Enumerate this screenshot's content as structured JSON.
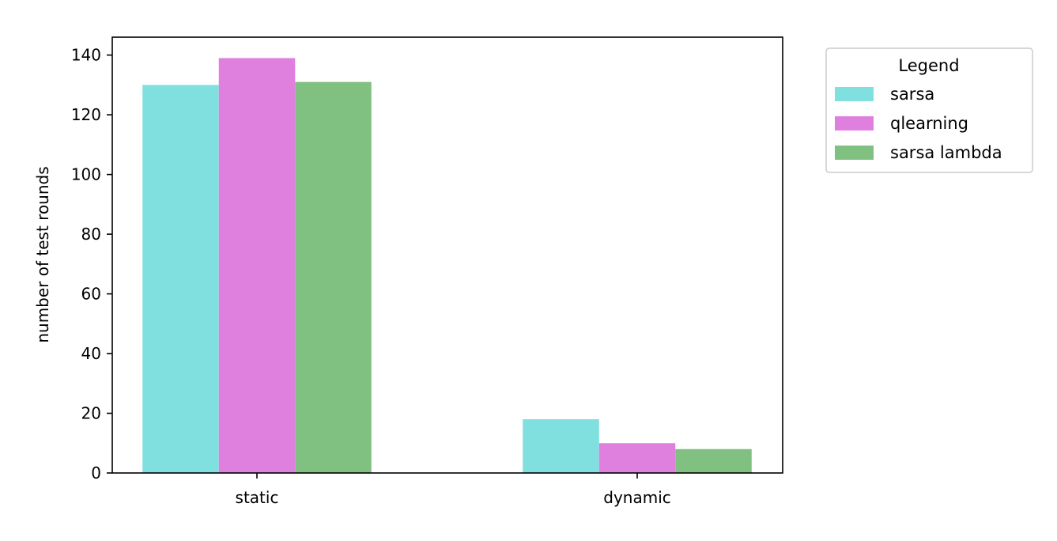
{
  "chart_data": {
    "type": "bar",
    "categories": [
      "static",
      "dynamic"
    ],
    "series": [
      {
        "name": "sarsa",
        "values": [
          130,
          18
        ],
        "color": "#80e0e0"
      },
      {
        "name": "qlearning",
        "values": [
          139,
          10
        ],
        "color": "#df80df"
      },
      {
        "name": "sarsa lambda",
        "values": [
          131,
          8
        ],
        "color": "#80c080"
      }
    ],
    "title": "",
    "xlabel": "",
    "ylabel": "number of test rounds",
    "ylim": [
      0,
      146
    ],
    "yticks": [
      0,
      20,
      40,
      60,
      80,
      100,
      120,
      140
    ],
    "grid": false,
    "legend": {
      "title": "Legend",
      "placement": "outside-top-right"
    }
  }
}
